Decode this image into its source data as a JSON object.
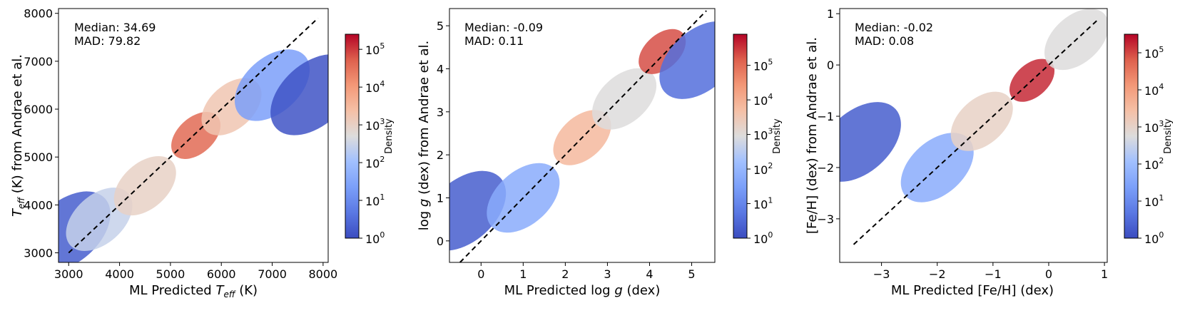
{
  "chart_data": [
    {
      "type": "heatmap",
      "subtype": "hexbin",
      "stats": {
        "median": "Median: 34.69",
        "mad": "MAD: 79.82"
      },
      "xlabel": "ML Predicted T_eff (K)",
      "xlabel_parts": [
        "ML Predicted ",
        "T",
        "eff",
        " (K)"
      ],
      "ylabel": "T_eff (K) from Andrae et al.",
      "ylabel_parts": [
        "T",
        "eff",
        " (K) from Andrae et al."
      ],
      "xlim": [
        2800,
        8100
      ],
      "ylim": [
        2800,
        8100
      ],
      "xticks": [
        3000,
        4000,
        5000,
        6000,
        7000,
        8000
      ],
      "xtick_labels": [
        "3000",
        "4000",
        "5000",
        "6000",
        "7000",
        "8000"
      ],
      "yticks": [
        3000,
        4000,
        5000,
        6000,
        7000,
        8000
      ],
      "ytick_labels": [
        "3000",
        "4000",
        "5000",
        "6000",
        "7000",
        "8000"
      ],
      "diagonal": [
        [
          3000,
          3000
        ],
        [
          7900,
          7900
        ]
      ],
      "colorbar": {
        "label": "Density",
        "ticks": [
          "10",
          "10",
          "10",
          "10",
          "10",
          "10"
        ],
        "exponents": [
          "0",
          "1",
          "2",
          "3",
          "4",
          "5"
        ],
        "log_min": 0,
        "log_max": 5.4
      },
      "density_regions": [
        {
          "x": 3000,
          "y": 3450,
          "level": 0.05
        },
        {
          "x": 3600,
          "y": 3700,
          "level": 0.45
        },
        {
          "x": 4500,
          "y": 4400,
          "level": 0.55
        },
        {
          "x": 5500,
          "y": 5450,
          "level": 0.85
        },
        {
          "x": 6200,
          "y": 6050,
          "level": 0.6
        },
        {
          "x": 7000,
          "y": 6500,
          "level": 0.25
        },
        {
          "x": 7800,
          "y": 6300,
          "level": 0.02
        }
      ]
    },
    {
      "type": "heatmap",
      "subtype": "hexbin",
      "stats": {
        "median": "Median: -0.09",
        "mad": "MAD: 0.11"
      },
      "xlabel": "ML Predicted log g (dex)",
      "xlabel_parts": [
        "ML Predicted log ",
        "g",
        " (dex)"
      ],
      "ylabel": "log g (dex) from Andrae et al.",
      "ylabel_parts": [
        "log ",
        "g",
        " (dex) from Andrae et al."
      ],
      "xlim": [
        -0.75,
        5.55
      ],
      "ylim": [
        -0.5,
        5.4
      ],
      "xticks": [
        0,
        1,
        2,
        3,
        4,
        5
      ],
      "xtick_labels": [
        "0",
        "1",
        "2",
        "3",
        "4",
        "5"
      ],
      "yticks": [
        0,
        1,
        2,
        3,
        4,
        5
      ],
      "ytick_labels": [
        "0",
        "1",
        "2",
        "3",
        "4",
        "5"
      ],
      "diagonal": [
        [
          -0.5,
          -0.5
        ],
        [
          5.35,
          5.35
        ]
      ],
      "colorbar": {
        "label": "Density",
        "ticks": [
          "10",
          "10",
          "10",
          "10",
          "10",
          "10"
        ],
        "exponents": [
          "0",
          "1",
          "2",
          "3",
          "4",
          "5"
        ],
        "log_min": 0,
        "log_max": 5.9
      },
      "density_regions": [
        {
          "x": -0.4,
          "y": 0.7,
          "level": 0.05
        },
        {
          "x": 1.0,
          "y": 1.0,
          "level": 0.3
        },
        {
          "x": 2.4,
          "y": 2.4,
          "level": 0.65
        },
        {
          "x": 3.4,
          "y": 3.3,
          "level": 0.5
        },
        {
          "x": 4.3,
          "y": 4.4,
          "level": 0.9
        },
        {
          "x": 5.2,
          "y": 4.2,
          "level": 0.1
        }
      ]
    },
    {
      "type": "heatmap",
      "subtype": "hexbin",
      "stats": {
        "median": "Median: -0.02",
        "mad": "MAD: 0.08"
      },
      "xlabel": "ML Predicted [Fe/H] (dex)",
      "xlabel_parts": [
        "ML Predicted [Fe/H] (dex)"
      ],
      "ylabel": "[Fe/H] (dex) from Andrae et al.",
      "ylabel_parts": [
        "[Fe/H] (dex) from Andrae et al."
      ],
      "xlim": [
        -3.75,
        1.05
      ],
      "ylim": [
        -3.85,
        1.1
      ],
      "xticks": [
        -3,
        -2,
        -1,
        0,
        1
      ],
      "xtick_labels": [
        "−3",
        "−2",
        "−1",
        "0",
        "1"
      ],
      "yticks": [
        -3,
        -2,
        -1,
        0,
        1
      ],
      "ytick_labels": [
        "−3",
        "−2",
        "−1",
        "0",
        "1"
      ],
      "diagonal": [
        [
          -3.5,
          -3.5
        ],
        [
          0.9,
          0.9
        ]
      ],
      "colorbar": {
        "label": "Density",
        "ticks": [
          "10",
          "10",
          "10",
          "10",
          "10",
          "10"
        ],
        "exponents": [
          "0",
          "1",
          "2",
          "3",
          "4",
          "5"
        ],
        "log_min": 0,
        "log_max": 5.5
      },
      "density_regions": [
        {
          "x": -3.4,
          "y": -1.5,
          "level": 0.05
        },
        {
          "x": -2.0,
          "y": -2.0,
          "level": 0.3
        },
        {
          "x": -1.2,
          "y": -1.1,
          "level": 0.55
        },
        {
          "x": -0.3,
          "y": -0.3,
          "level": 0.95
        },
        {
          "x": 0.5,
          "y": 0.5,
          "level": 0.5
        }
      ]
    }
  ]
}
